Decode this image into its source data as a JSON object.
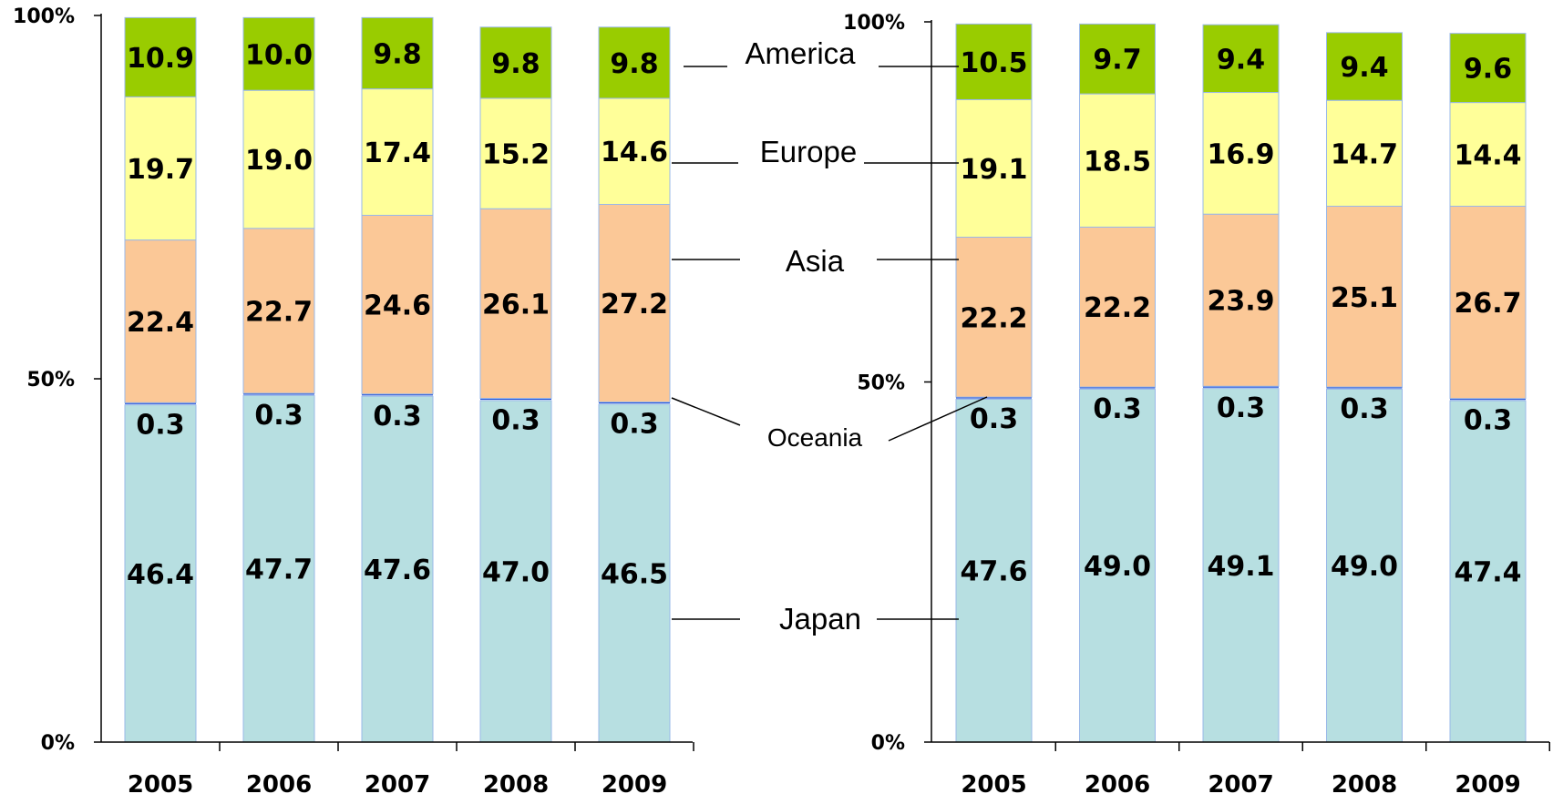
{
  "chart_data": [
    {
      "type": "bar",
      "stacked": true,
      "percent_stacked": true,
      "categories": [
        "2005",
        "2006",
        "2007",
        "2008",
        "2009"
      ],
      "y_ticks": [
        "0%",
        "50%",
        "100%"
      ],
      "ylim": [
        0,
        100
      ],
      "series": [
        {
          "name": "Japan",
          "color": "#b7dfe1",
          "values": [
            46.4,
            47.7,
            47.6,
            47.0,
            46.5
          ]
        },
        {
          "name": "Oceania",
          "color": "#1f4fd6",
          "values": [
            0.3,
            0.3,
            0.3,
            0.3,
            0.3
          ]
        },
        {
          "name": "Asia",
          "color": "#fbc897",
          "values": [
            22.4,
            22.7,
            24.6,
            26.1,
            27.2
          ]
        },
        {
          "name": "Europe",
          "color": "#ffff99",
          "values": [
            19.7,
            19.0,
            17.4,
            15.2,
            14.6
          ]
        },
        {
          "name": "America",
          "color": "#99cc00",
          "values": [
            10.9,
            10.0,
            9.8,
            9.8,
            9.8
          ]
        }
      ]
    },
    {
      "type": "bar",
      "stacked": true,
      "percent_stacked": true,
      "categories": [
        "2005",
        "2006",
        "2007",
        "2008",
        "2009"
      ],
      "y_ticks": [
        "0%",
        "50%",
        "100%"
      ],
      "ylim": [
        0,
        100
      ],
      "series": [
        {
          "name": "Japan",
          "color": "#b7dfe1",
          "values": [
            47.6,
            49.0,
            49.1,
            49.0,
            47.4
          ]
        },
        {
          "name": "Oceania",
          "color": "#1f4fd6",
          "values": [
            0.3,
            0.3,
            0.3,
            0.3,
            0.3
          ]
        },
        {
          "name": "Asia",
          "color": "#fbc897",
          "values": [
            22.2,
            22.2,
            23.9,
            25.1,
            26.7
          ]
        },
        {
          "name": "Europe",
          "color": "#ffff99",
          "values": [
            19.1,
            18.5,
            16.9,
            14.7,
            14.4
          ]
        },
        {
          "name": "America",
          "color": "#99cc00",
          "values": [
            10.5,
            9.7,
            9.4,
            9.4,
            9.6
          ]
        }
      ]
    }
  ],
  "legend": [
    "America",
    "Europe",
    "Asia",
    "Oceania",
    "Japan"
  ]
}
